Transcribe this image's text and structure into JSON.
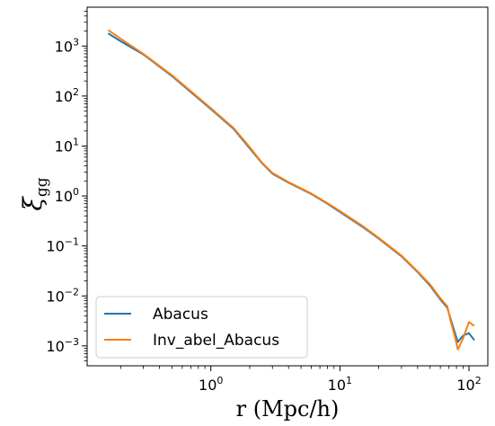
{
  "chart_data": {
    "type": "line",
    "xscale": "log",
    "yscale": "log",
    "xlim": [
      0.11,
      140
    ],
    "ylim": [
      0.0004,
      6000
    ],
    "xlabel": "r (Mpc/h)",
    "ylabel": "ξgg",
    "ylabel_main": "ξ",
    "ylabel_sub": "gg",
    "grid": false,
    "legend_position": "lower-left",
    "x_ticks": [
      {
        "value": 1,
        "base": "10",
        "exp": "0"
      },
      {
        "value": 10,
        "base": "10",
        "exp": "1"
      },
      {
        "value": 100,
        "base": "10",
        "exp": "2"
      }
    ],
    "y_ticks": [
      {
        "value": 1000,
        "base": "10",
        "exp": "3"
      },
      {
        "value": 100,
        "base": "10",
        "exp": "2"
      },
      {
        "value": 10,
        "base": "10",
        "exp": "1"
      },
      {
        "value": 1,
        "base": "10",
        "exp": "0"
      },
      {
        "value": 0.1,
        "base": "10",
        "exp": "−1"
      },
      {
        "value": 0.01,
        "base": "10",
        "exp": "−2"
      },
      {
        "value": 0.001,
        "base": "10",
        "exp": "−3"
      }
    ],
    "series": [
      {
        "name": "Abacus",
        "color": "#1f77b4",
        "x": [
          0.16,
          0.2,
          0.3,
          0.5,
          0.7,
          1.0,
          1.5,
          2.0,
          2.5,
          3.0,
          4.0,
          6.0,
          8.0,
          10.0,
          15.0,
          20.0,
          30.0,
          40.0,
          50.0,
          60.0,
          68.0,
          72.0,
          78.0,
          82.0,
          90.0,
          100.0,
          110.0
        ],
        "y": [
          1800,
          1250,
          680,
          250,
          120,
          55,
          22,
          9,
          4.5,
          2.8,
          1.85,
          1.1,
          0.7,
          0.48,
          0.24,
          0.14,
          0.062,
          0.03,
          0.016,
          0.0085,
          0.0058,
          0.0035,
          0.0018,
          0.0012,
          0.0016,
          0.0018,
          0.0013
        ]
      },
      {
        "name": "Inv_abel_Abacus",
        "color": "#ff7f0e",
        "x": [
          0.16,
          0.2,
          0.3,
          0.5,
          0.7,
          1.0,
          1.5,
          2.0,
          2.5,
          3.0,
          4.0,
          6.0,
          8.0,
          10.0,
          15.0,
          20.0,
          30.0,
          40.0,
          50.0,
          60.0,
          68.0,
          72.0,
          78.0,
          82.0,
          90.0,
          100.0,
          110.0
        ],
        "y": [
          2100,
          1400,
          700,
          260,
          125,
          57,
          23,
          9.5,
          4.6,
          2.9,
          1.9,
          1.12,
          0.72,
          0.5,
          0.25,
          0.145,
          0.064,
          0.031,
          0.017,
          0.009,
          0.0062,
          0.0032,
          0.0015,
          0.00085,
          0.0014,
          0.003,
          0.0025
        ]
      }
    ]
  }
}
